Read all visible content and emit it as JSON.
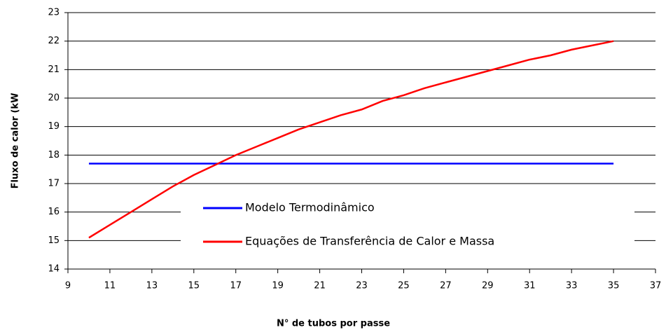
{
  "chart_data": {
    "type": "line",
    "x_label": "N° de tubos por passe",
    "y_label": "Fluxo de calor (kW",
    "x": [
      10,
      11,
      12,
      13,
      14,
      15,
      16,
      17,
      18,
      19,
      20,
      21,
      22,
      23,
      24,
      25,
      26,
      27,
      28,
      29,
      30,
      31,
      32,
      33,
      34,
      35
    ],
    "series": [
      {
        "name": "Modelo Termodinâmico",
        "color": "#0000ff",
        "values": [
          17.7,
          17.7,
          17.7,
          17.7,
          17.7,
          17.7,
          17.7,
          17.7,
          17.7,
          17.7,
          17.7,
          17.7,
          17.7,
          17.7,
          17.7,
          17.7,
          17.7,
          17.7,
          17.7,
          17.7,
          17.7,
          17.7,
          17.7,
          17.7,
          17.7,
          17.7
        ]
      },
      {
        "name": "Equações de Transferência de Calor e Massa",
        "color": "#ff0000",
        "values": [
          15.1,
          15.55,
          16.0,
          16.45,
          16.9,
          17.3,
          17.65,
          18.0,
          18.3,
          18.6,
          18.9,
          19.15,
          19.4,
          19.6,
          19.9,
          20.1,
          20.35,
          20.55,
          20.75,
          20.95,
          21.15,
          21.35,
          21.5,
          21.7,
          21.85,
          22.0
        ]
      }
    ],
    "xlim": [
      9,
      37
    ],
    "xticks": [
      9,
      11,
      13,
      15,
      17,
      19,
      21,
      23,
      25,
      27,
      29,
      31,
      33,
      35,
      37
    ],
    "ylim": [
      14,
      23
    ],
    "yticks": [
      14,
      15,
      16,
      17,
      18,
      19,
      20,
      21,
      22,
      23
    ],
    "grid": true
  }
}
